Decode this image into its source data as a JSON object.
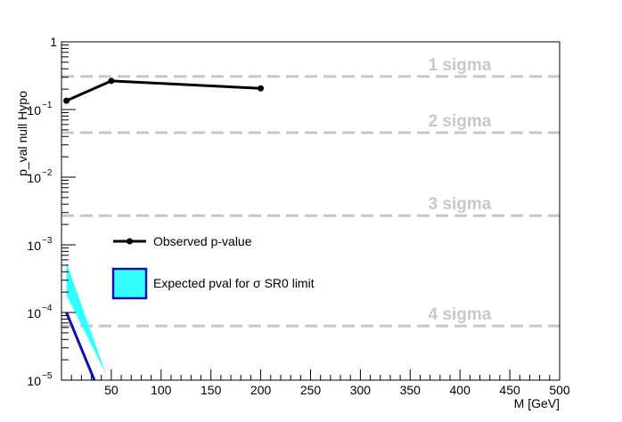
{
  "chart_data": {
    "type": "line",
    "title": "",
    "xlabel": "M  [GeV]",
    "ylabel": "p_val null Hypo",
    "xlim": [
      0,
      500
    ],
    "ylim": [
      1e-05,
      1
    ],
    "yscale": "log",
    "grid": false,
    "x_ticks": [
      "50",
      "100",
      "150",
      "200",
      "250",
      "300",
      "350",
      "400",
      "450",
      "500"
    ],
    "y_ticks": [
      {
        "value": 1,
        "label": "1"
      },
      {
        "value": 0.1,
        "label": "10",
        "exp": "−1"
      },
      {
        "value": 0.01,
        "label": "10",
        "exp": "−2"
      },
      {
        "value": 0.001,
        "label": "10",
        "exp": "−3"
      },
      {
        "value": 0.0001,
        "label": "10",
        "exp": "−4"
      },
      {
        "value": 1e-05,
        "label": "10",
        "exp": "−5"
      }
    ],
    "series": [
      {
        "name": "Observed p-value",
        "color": "#000000",
        "x": [
          5,
          50,
          200
        ],
        "y": [
          0.135,
          0.265,
          0.205
        ]
      }
    ],
    "expected_band": {
      "color": "#33ffff",
      "upper": {
        "x": [
          5,
          45
        ],
        "y": [
          0.00055,
          1.2e-05
        ]
      },
      "lower": {
        "x": [
          5,
          45
        ],
        "y": [
          0.00018,
          1.2e-05
        ]
      }
    },
    "expected_line": {
      "color": "#1010b0",
      "x": [
        5,
        33
      ],
      "y": [
        0.0001,
        1e-05
      ]
    },
    "sigma_lines": [
      {
        "label": "1 sigma",
        "y": 0.3085
      },
      {
        "label": "2 sigma",
        "y": 0.0455
      },
      {
        "label": "3 sigma",
        "y": 0.0027
      },
      {
        "label": "4 sigma",
        "y": 6.33e-05
      }
    ],
    "legend": {
      "placement": "left-center",
      "entries": [
        "Observed p-value",
        "Expected pval for σ SR0 limit"
      ]
    }
  }
}
